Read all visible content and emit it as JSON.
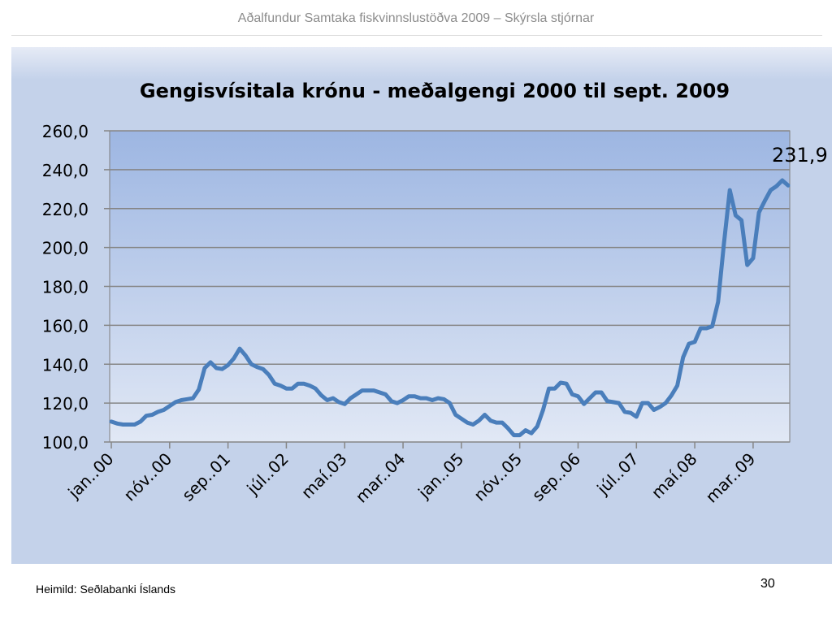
{
  "header": {
    "title": "Aðalfundur Samtaka fiskvinnslustöðva 2009 – Skýrsla stjórnar"
  },
  "footer": {
    "source": "Heimild: Seðlabanki Íslands",
    "page_number": "30"
  },
  "chart_data": {
    "type": "line",
    "title": "Gengisvísitala krónu - meðalgengi 2000  til sept. 2009",
    "xlabel": "",
    "ylabel": "",
    "ylim": [
      100,
      260
    ],
    "grid": true,
    "y_ticks": [
      "100,0",
      "120,0",
      "140,0",
      "160,0",
      "180,0",
      "200,0",
      "220,0",
      "240,0",
      "260,0"
    ],
    "x_tick_labels": [
      "jan..00",
      "nóv..00",
      "sep..01",
      "júl..02",
      "maí.03",
      "mar..04",
      "jan..05",
      "nóv..05",
      "sep..06",
      "júl..07",
      "maí.08",
      "mar..09"
    ],
    "x_tick_months": [
      0,
      10,
      20,
      30,
      40,
      50,
      60,
      70,
      80,
      90,
      100,
      110
    ],
    "x_month_count": 117,
    "annotation": {
      "text": "231,9"
    },
    "line_color": "#4a7ebb",
    "plot_gradient": [
      "#9db6e2",
      "#e1e8f5"
    ],
    "series": [
      {
        "values": [
          110.5,
          109.5,
          109,
          109,
          109,
          110.5,
          113.5,
          114,
          115.5,
          116.5,
          118.5,
          120.5,
          121.5,
          122,
          122.5,
          127,
          138,
          141,
          138,
          137.5,
          139.5,
          143,
          148,
          144.5,
          140,
          138.5,
          137.5,
          134.5,
          130,
          129,
          127.5,
          127.5,
          130,
          130,
          129,
          127.5,
          124,
          121.5,
          122.5,
          120.5,
          119.5,
          122.5,
          124.5,
          126.5,
          126.5,
          126.5,
          125.5,
          124.5,
          121,
          120,
          121.5,
          123.5,
          123.5,
          122.5,
          122.5,
          121.5,
          122.5,
          122,
          120,
          114,
          112,
          110,
          109,
          111,
          114,
          111,
          110,
          110,
          107,
          103.5,
          103.5,
          106,
          104.5,
          108,
          116.5,
          127.5,
          127.5,
          130.5,
          130,
          124.5,
          123.5,
          119.5,
          122.5,
          125.5,
          125.5,
          121,
          120.5,
          120,
          115.5,
          115,
          113,
          120,
          120,
          116.5,
          118,
          120,
          124,
          129,
          143.5,
          150.5,
          151.5,
          158.5,
          158.5,
          159.5,
          172,
          202,
          229.5,
          216.5,
          214,
          191,
          194.5,
          218,
          224,
          229.5,
          231.5,
          234.5,
          231.9
        ]
      }
    ]
  }
}
